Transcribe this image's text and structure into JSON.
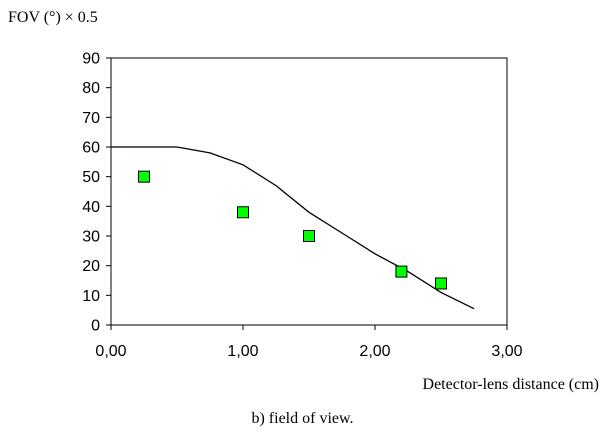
{
  "chart_data": {
    "type": "scatter",
    "ylabel": "FOV (°) × 0.5",
    "xlabel": "Detector-lens distance (cm)",
    "caption": "b) field of view.",
    "xlim": [
      0,
      3
    ],
    "ylim": [
      0,
      90
    ],
    "x_ticks": [
      "0,00",
      "1,00",
      "2,00",
      "3,00"
    ],
    "x_tick_values": [
      0,
      1,
      2,
      3
    ],
    "y_ticks": [
      "0",
      "10",
      "20",
      "30",
      "40",
      "50",
      "60",
      "70",
      "80",
      "90"
    ],
    "y_tick_values": [
      0,
      10,
      20,
      30,
      40,
      50,
      60,
      70,
      80,
      90
    ],
    "grid": false,
    "series": [
      {
        "kind": "line",
        "color": "#000000",
        "x": [
          0,
          0.25,
          0.5,
          0.75,
          1.0,
          1.25,
          1.5,
          1.75,
          2.0,
          2.25,
          2.5,
          2.75
        ],
        "y": [
          60,
          60,
          60,
          58,
          54,
          47,
          38,
          31,
          24,
          18,
          11,
          5.5
        ]
      },
      {
        "kind": "points",
        "marker": "square",
        "color": "#00ff00",
        "x": [
          0.25,
          1.0,
          1.5,
          2.2,
          2.5
        ],
        "y": [
          50,
          38,
          30,
          18,
          14
        ]
      }
    ]
  }
}
